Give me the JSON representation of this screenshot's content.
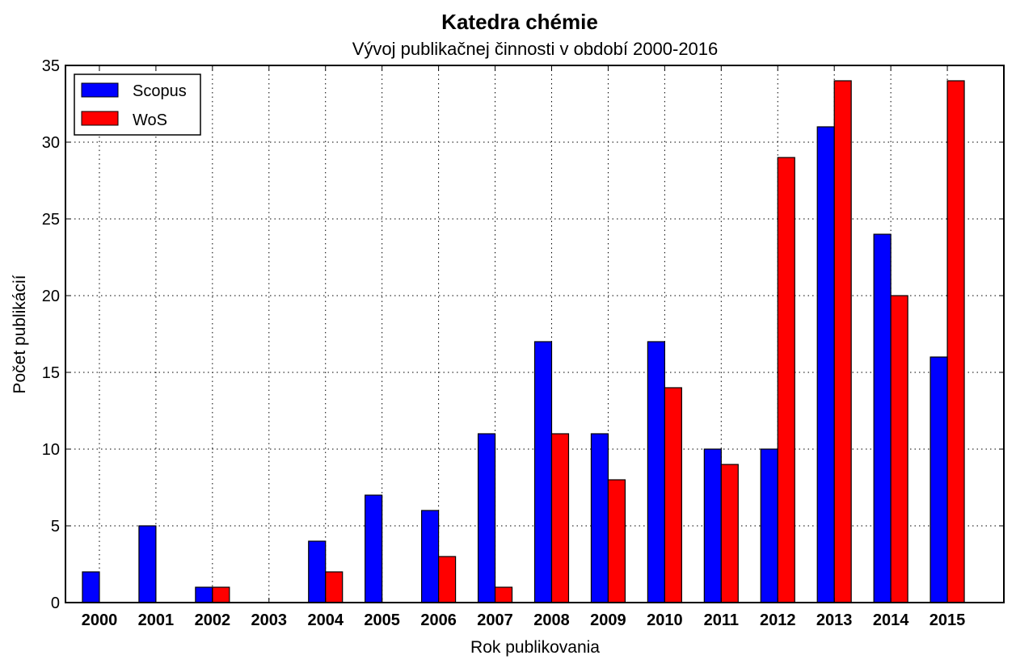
{
  "chart_data": {
    "type": "bar",
    "title": "Katedra chémie",
    "subtitle": "Vývoj publikačnej činnosti v období 2000-2016",
    "xlabel": "Rok publikovania",
    "ylabel": "Počet publikácií",
    "categories": [
      "2000",
      "2001",
      "2002",
      "2003",
      "2004",
      "2005",
      "2006",
      "2007",
      "2008",
      "2009",
      "2010",
      "2011",
      "2012",
      "2013",
      "2014",
      "2015"
    ],
    "series": [
      {
        "name": "Scopus",
        "color": "#0000ff",
        "values": [
          2,
          5,
          1,
          0,
          4,
          7,
          6,
          11,
          17,
          11,
          17,
          10,
          10,
          31,
          24,
          16
        ]
      },
      {
        "name": "WoS",
        "color": "#ff0000",
        "values": [
          0,
          0,
          1,
          0,
          2,
          0,
          3,
          1,
          11,
          8,
          14,
          9,
          29,
          34,
          20,
          34
        ]
      }
    ],
    "ylim": [
      0,
      35
    ],
    "yticks": [
      "0",
      "5",
      "10",
      "15",
      "20",
      "25",
      "30",
      "35"
    ],
    "grid": true,
    "legend_position": "top-left"
  }
}
